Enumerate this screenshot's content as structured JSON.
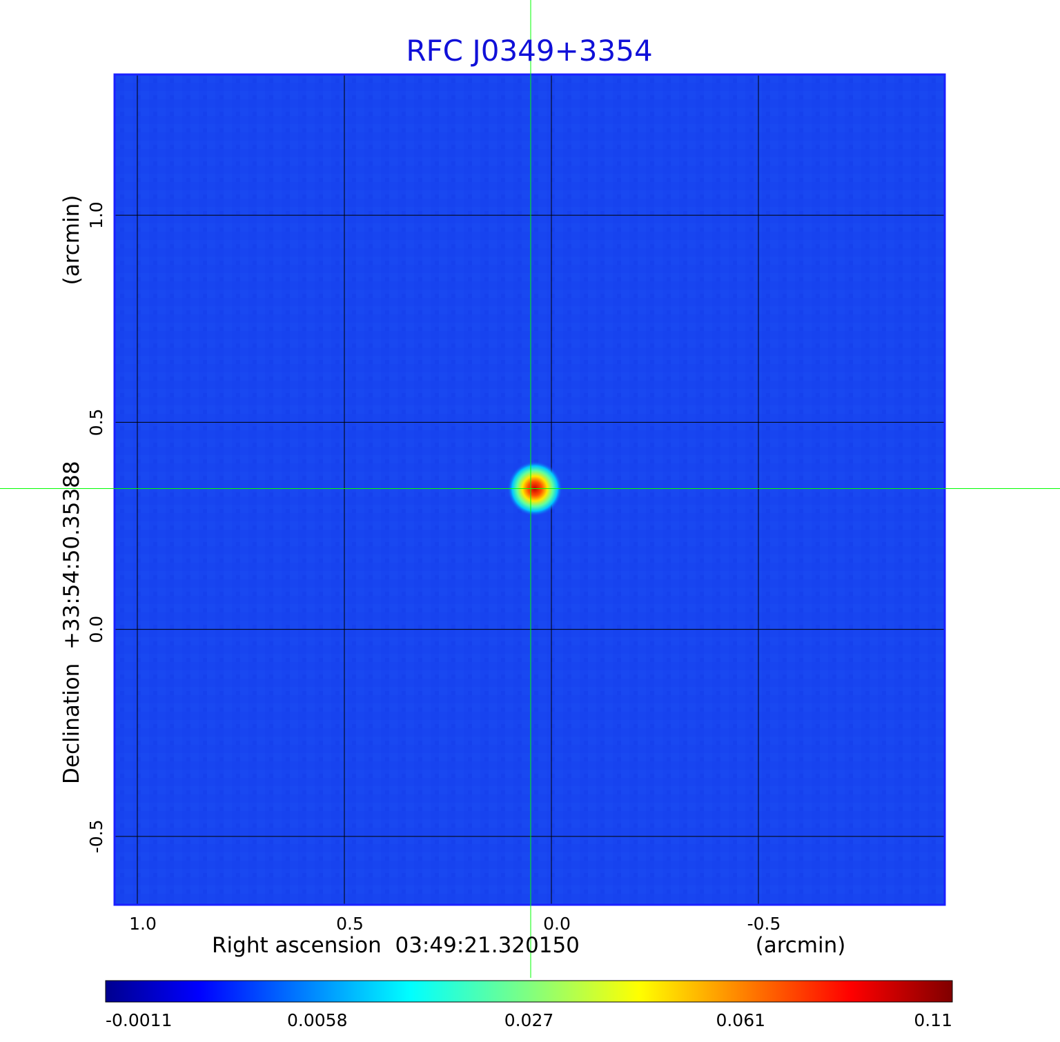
{
  "chart_data": {
    "type": "heatmap",
    "title": "RFC J0349+3354",
    "xlabel": "Right ascension  03:49:21.320150",
    "xlabel_unit": "(arcmin)",
    "ylabel": "Declination  +33:54:50.35388",
    "ylabel_unit": "(arcmin)",
    "x_ticks": [
      "1.0",
      "0.5",
      "0.0",
      "-0.5"
    ],
    "y_ticks": [
      "1.0",
      "0.5",
      "0.0",
      "-0.5"
    ],
    "x_tick_values": [
      1.0,
      0.5,
      0.0,
      -0.5
    ],
    "y_tick_values": [
      1.0,
      0.5,
      0.0,
      -0.5
    ],
    "xlim": [
      1.055,
      -0.95
    ],
    "ylim": [
      -0.665,
      1.34
    ],
    "grid": true,
    "crosshair": {
      "x": 0.05,
      "y": 0.34,
      "color": "#00ff00"
    },
    "source_peak": {
      "x": 0.04,
      "y": 0.34,
      "value": 0.11
    },
    "colorbar": {
      "ticks": [
        "-0.0011",
        "0.0058",
        "0.027",
        "0.061",
        "0.11"
      ],
      "colormap": "jet",
      "range": [
        -0.0011,
        0.11
      ]
    },
    "colors": {
      "title": "#1010d8",
      "background_level": "#1844f0",
      "frame": "#1a20ff",
      "grid": "#000000"
    }
  }
}
